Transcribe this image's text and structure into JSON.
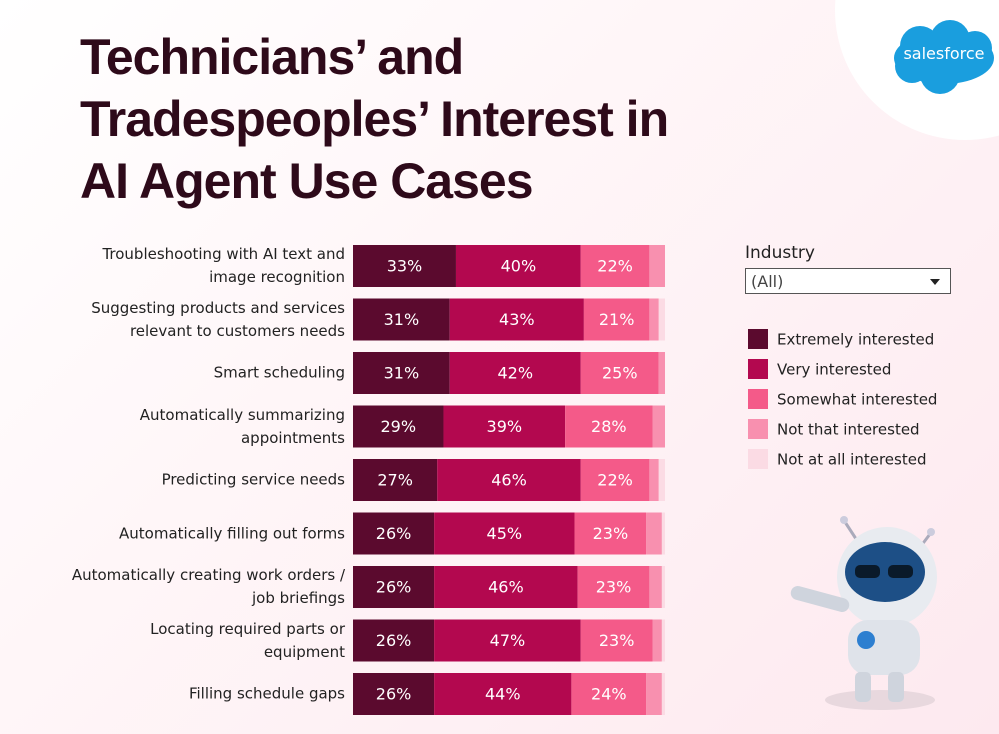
{
  "brand": "salesforce",
  "filter": {
    "label": "Industry",
    "value": "(All)"
  },
  "chart_data": {
    "type": "bar",
    "orientation": "horizontal",
    "stacked": true,
    "title": "Technicians’ and Tradespeoples’ Interest in AI Agent Use Cases",
    "categories": [
      "Troubleshooting with AI text and image recognition",
      "Suggesting products and services relevant to customers needs",
      "Smart scheduling",
      "Automatically summarizing appointments",
      "Predicting service needs",
      "Automatically filling out forms",
      "Automatically creating work orders / job briefings",
      "Locating required parts or equipment",
      "Filling schedule gaps"
    ],
    "xlim": [
      0,
      100
    ],
    "series": [
      {
        "name": "Extremely interested",
        "color": "#5b0a2e",
        "values": [
          33,
          31,
          31,
          29,
          27,
          26,
          26,
          26,
          26
        ],
        "value_labels": [
          "33%",
          "31%",
          "31%",
          "29%",
          "27%",
          "26%",
          "26%",
          "26%",
          "26%"
        ]
      },
      {
        "name": "Very interested",
        "color": "#b3084f",
        "values": [
          40,
          43,
          42,
          39,
          46,
          45,
          46,
          47,
          44
        ],
        "value_labels": [
          "40%",
          "43%",
          "42%",
          "39%",
          "46%",
          "45%",
          "46%",
          "47%",
          "44%"
        ]
      },
      {
        "name": "Somewhat interested",
        "color": "#f45a89",
        "values": [
          22,
          21,
          25,
          28,
          22,
          23,
          23,
          23,
          24
        ],
        "value_labels": [
          "22%",
          "21%",
          "25%",
          "28%",
          "22%",
          "23%",
          "23%",
          "23%",
          "24%"
        ]
      },
      {
        "name": "Not that interested",
        "color": "#f890af",
        "values": [
          5,
          3,
          2,
          4,
          3,
          5,
          4,
          3,
          5
        ]
      },
      {
        "name": "Not at all interested",
        "color": "#fbdbe4",
        "values": [
          0,
          2,
          0,
          0,
          2,
          1,
          1,
          1,
          1
        ]
      }
    ]
  }
}
